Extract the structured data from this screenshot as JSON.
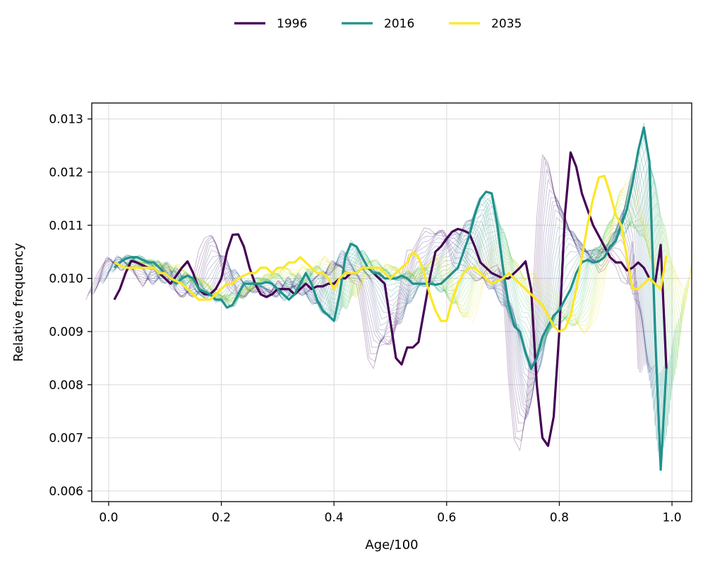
{
  "chart_data": {
    "type": "line",
    "title": "",
    "xlabel": "Age/100",
    "ylabel": "Relative frequency",
    "xlim": [
      -0.03,
      1.035
    ],
    "ylim": [
      0.0058,
      0.0133
    ],
    "grid": true,
    "legend_position": "top-center",
    "x_ticks": [
      0.0,
      0.2,
      0.4,
      0.6,
      0.8,
      1.0
    ],
    "x_tick_labels": [
      "0.0",
      "0.2",
      "0.4",
      "0.6",
      "0.8",
      "1.0"
    ],
    "y_ticks": [
      0.006,
      0.007,
      0.008,
      0.009,
      0.01,
      0.011,
      0.012,
      0.013
    ],
    "y_tick_labels": [
      "0.006",
      "0.007",
      "0.008",
      "0.009",
      "0.010",
      "0.011",
      "0.012",
      "0.013"
    ],
    "series": [
      {
        "name": "1996",
        "color": "#440154",
        "points": [
          [
            0.01,
            0.0096
          ],
          [
            0.02,
            0.0098
          ],
          [
            0.03,
            0.0101
          ],
          [
            0.04,
            0.01033
          ],
          [
            0.05,
            0.0103
          ],
          [
            0.06,
            0.01025
          ],
          [
            0.07,
            0.0102
          ],
          [
            0.08,
            0.0102
          ],
          [
            0.09,
            0.0101
          ],
          [
            0.1,
            0.01
          ],
          [
            0.11,
            0.0099
          ],
          [
            0.12,
            0.01005
          ],
          [
            0.13,
            0.0102
          ],
          [
            0.14,
            0.01032
          ],
          [
            0.15,
            0.0101
          ],
          [
            0.16,
            0.0098
          ],
          [
            0.17,
            0.0097
          ],
          [
            0.18,
            0.0097
          ],
          [
            0.19,
            0.0098
          ],
          [
            0.2,
            0.01
          ],
          [
            0.21,
            0.0105
          ],
          [
            0.22,
            0.01082
          ],
          [
            0.23,
            0.01083
          ],
          [
            0.24,
            0.0106
          ],
          [
            0.25,
            0.0102
          ],
          [
            0.26,
            0.0099
          ],
          [
            0.27,
            0.0097
          ],
          [
            0.28,
            0.00965
          ],
          [
            0.29,
            0.0097
          ],
          [
            0.3,
            0.0098
          ],
          [
            0.31,
            0.0098
          ],
          [
            0.32,
            0.0098
          ],
          [
            0.33,
            0.0097
          ],
          [
            0.34,
            0.0098
          ],
          [
            0.35,
            0.0099
          ],
          [
            0.36,
            0.0098
          ],
          [
            0.37,
            0.00985
          ],
          [
            0.38,
            0.00985
          ],
          [
            0.39,
            0.0099
          ],
          [
            0.4,
            0.0099
          ],
          [
            0.41,
            0.01
          ],
          [
            0.42,
            0.01
          ],
          [
            0.43,
            0.0101
          ],
          [
            0.44,
            0.0101
          ],
          [
            0.45,
            0.0102
          ],
          [
            0.46,
            0.0102
          ],
          [
            0.47,
            0.0101
          ],
          [
            0.48,
            0.01
          ],
          [
            0.49,
            0.0099
          ],
          [
            0.5,
            0.0092
          ],
          [
            0.51,
            0.0085
          ],
          [
            0.52,
            0.00838
          ],
          [
            0.53,
            0.0087
          ],
          [
            0.54,
            0.0087
          ],
          [
            0.55,
            0.0088
          ],
          [
            0.56,
            0.0094
          ],
          [
            0.57,
            0.01
          ],
          [
            0.58,
            0.0105
          ],
          [
            0.59,
            0.0106
          ],
          [
            0.6,
            0.01075
          ],
          [
            0.61,
            0.01088
          ],
          [
            0.62,
            0.01093
          ],
          [
            0.63,
            0.0109
          ],
          [
            0.64,
            0.01085
          ],
          [
            0.65,
            0.0106
          ],
          [
            0.66,
            0.0103
          ],
          [
            0.67,
            0.0102
          ],
          [
            0.68,
            0.0101
          ],
          [
            0.69,
            0.01005
          ],
          [
            0.7,
            0.01
          ],
          [
            0.71,
            0.01
          ],
          [
            0.72,
            0.0101
          ],
          [
            0.73,
            0.0102
          ],
          [
            0.74,
            0.01032
          ],
          [
            0.75,
            0.0098
          ],
          [
            0.76,
            0.008
          ],
          [
            0.77,
            0.007
          ],
          [
            0.78,
            0.00685
          ],
          [
            0.79,
            0.0074
          ],
          [
            0.8,
            0.009
          ],
          [
            0.81,
            0.0112
          ],
          [
            0.82,
            0.01237
          ],
          [
            0.83,
            0.0121
          ],
          [
            0.84,
            0.0116
          ],
          [
            0.85,
            0.0113
          ],
          [
            0.86,
            0.011
          ],
          [
            0.87,
            0.0108
          ],
          [
            0.88,
            0.0106
          ],
          [
            0.89,
            0.0104
          ],
          [
            0.9,
            0.0103
          ],
          [
            0.91,
            0.0103
          ],
          [
            0.92,
            0.01015
          ],
          [
            0.93,
            0.0102
          ],
          [
            0.94,
            0.0103
          ],
          [
            0.95,
            0.0102
          ],
          [
            0.96,
            0.01
          ],
          [
            0.97,
            0.0099
          ],
          [
            0.98,
            0.01063
          ],
          [
            0.99,
            0.0083
          ]
        ]
      },
      {
        "name": "2016",
        "color": "#21918c",
        "points": [
          [
            0.01,
            0.0102
          ],
          [
            0.02,
            0.0103
          ],
          [
            0.03,
            0.01037
          ],
          [
            0.04,
            0.0104
          ],
          [
            0.05,
            0.0104
          ],
          [
            0.06,
            0.01035
          ],
          [
            0.07,
            0.0103
          ],
          [
            0.08,
            0.0103
          ],
          [
            0.09,
            0.0102
          ],
          [
            0.1,
            0.0101
          ],
          [
            0.11,
            0.01
          ],
          [
            0.12,
            0.0099
          ],
          [
            0.13,
            0.01
          ],
          [
            0.14,
            0.01005
          ],
          [
            0.15,
            0.01
          ],
          [
            0.16,
            0.0098
          ],
          [
            0.17,
            0.00975
          ],
          [
            0.18,
            0.0097
          ],
          [
            0.19,
            0.0096
          ],
          [
            0.2,
            0.0096
          ],
          [
            0.21,
            0.00945
          ],
          [
            0.22,
            0.0095
          ],
          [
            0.23,
            0.0097
          ],
          [
            0.24,
            0.0099
          ],
          [
            0.25,
            0.0099
          ],
          [
            0.26,
            0.0099
          ],
          [
            0.27,
            0.0099
          ],
          [
            0.28,
            0.00993
          ],
          [
            0.29,
            0.0099
          ],
          [
            0.3,
            0.0098
          ],
          [
            0.31,
            0.0097
          ],
          [
            0.32,
            0.0096
          ],
          [
            0.33,
            0.0097
          ],
          [
            0.34,
            0.0099
          ],
          [
            0.35,
            0.0101
          ],
          [
            0.36,
            0.0099
          ],
          [
            0.37,
            0.0096
          ],
          [
            0.38,
            0.0094
          ],
          [
            0.39,
            0.0093
          ],
          [
            0.4,
            0.0092
          ],
          [
            0.41,
            0.0097
          ],
          [
            0.42,
            0.0104
          ],
          [
            0.43,
            0.01065
          ],
          [
            0.44,
            0.0106
          ],
          [
            0.45,
            0.0104
          ],
          [
            0.46,
            0.0102
          ],
          [
            0.47,
            0.0101
          ],
          [
            0.48,
            0.0101
          ],
          [
            0.49,
            0.01
          ],
          [
            0.5,
            0.01
          ],
          [
            0.51,
            0.01
          ],
          [
            0.52,
            0.01005
          ],
          [
            0.53,
            0.01
          ],
          [
            0.54,
            0.0099
          ],
          [
            0.55,
            0.0099
          ],
          [
            0.56,
            0.0099
          ],
          [
            0.57,
            0.0099
          ],
          [
            0.58,
            0.00988
          ],
          [
            0.59,
            0.0099
          ],
          [
            0.6,
            0.01
          ],
          [
            0.61,
            0.0101
          ],
          [
            0.62,
            0.0102
          ],
          [
            0.63,
            0.0105
          ],
          [
            0.64,
            0.0108
          ],
          [
            0.65,
            0.0112
          ],
          [
            0.66,
            0.0115
          ],
          [
            0.67,
            0.01163
          ],
          [
            0.68,
            0.0116
          ],
          [
            0.69,
            0.011
          ],
          [
            0.7,
            0.0102
          ],
          [
            0.71,
            0.0095
          ],
          [
            0.72,
            0.0091
          ],
          [
            0.73,
            0.009
          ],
          [
            0.74,
            0.0086
          ],
          [
            0.75,
            0.0083
          ],
          [
            0.76,
            0.0085
          ],
          [
            0.77,
            0.0089
          ],
          [
            0.78,
            0.0091
          ],
          [
            0.79,
            0.0093
          ],
          [
            0.8,
            0.0094
          ],
          [
            0.81,
            0.0096
          ],
          [
            0.82,
            0.0098
          ],
          [
            0.83,
            0.0101
          ],
          [
            0.84,
            0.0103
          ],
          [
            0.85,
            0.01035
          ],
          [
            0.86,
            0.0103
          ],
          [
            0.87,
            0.01032
          ],
          [
            0.88,
            0.0104
          ],
          [
            0.89,
            0.0106
          ],
          [
            0.9,
            0.0107
          ],
          [
            0.91,
            0.011
          ],
          [
            0.92,
            0.0113
          ],
          [
            0.93,
            0.0118
          ],
          [
            0.94,
            0.0124
          ],
          [
            0.95,
            0.01284
          ],
          [
            0.96,
            0.0122
          ],
          [
            0.97,
            0.009
          ],
          [
            0.98,
            0.0064
          ],
          [
            0.99,
            0.0083
          ]
        ]
      },
      {
        "name": "2035",
        "color": "#fde725",
        "points": [
          [
            0.01,
            0.0103
          ],
          [
            0.02,
            0.01025
          ],
          [
            0.03,
            0.0102
          ],
          [
            0.04,
            0.0102
          ],
          [
            0.05,
            0.0102
          ],
          [
            0.06,
            0.0102
          ],
          [
            0.07,
            0.0102
          ],
          [
            0.08,
            0.0102
          ],
          [
            0.09,
            0.0101
          ],
          [
            0.1,
            0.0101
          ],
          [
            0.11,
            0.01
          ],
          [
            0.12,
            0.00995
          ],
          [
            0.13,
            0.0099
          ],
          [
            0.14,
            0.0098
          ],
          [
            0.15,
            0.0097
          ],
          [
            0.16,
            0.0096
          ],
          [
            0.17,
            0.0096
          ],
          [
            0.18,
            0.0096
          ],
          [
            0.19,
            0.0097
          ],
          [
            0.2,
            0.0098
          ],
          [
            0.21,
            0.0099
          ],
          [
            0.22,
            0.0099
          ],
          [
            0.23,
            0.01
          ],
          [
            0.24,
            0.01005
          ],
          [
            0.25,
            0.0101
          ],
          [
            0.26,
            0.0101
          ],
          [
            0.27,
            0.0102
          ],
          [
            0.28,
            0.0102
          ],
          [
            0.29,
            0.0101
          ],
          [
            0.3,
            0.0102
          ],
          [
            0.31,
            0.0102
          ],
          [
            0.32,
            0.0103
          ],
          [
            0.33,
            0.0103
          ],
          [
            0.34,
            0.0104
          ],
          [
            0.35,
            0.0103
          ],
          [
            0.36,
            0.0102
          ],
          [
            0.37,
            0.0101
          ],
          [
            0.38,
            0.0101
          ],
          [
            0.39,
            0.01
          ],
          [
            0.4,
            0.0098
          ],
          [
            0.41,
            0.01
          ],
          [
            0.42,
            0.0101
          ],
          [
            0.43,
            0.0101
          ],
          [
            0.44,
            0.0101
          ],
          [
            0.45,
            0.0102
          ],
          [
            0.46,
            0.0102
          ],
          [
            0.47,
            0.0102
          ],
          [
            0.48,
            0.0102
          ],
          [
            0.49,
            0.0101
          ],
          [
            0.5,
            0.01
          ],
          [
            0.51,
            0.0101
          ],
          [
            0.52,
            0.0102
          ],
          [
            0.53,
            0.0103
          ],
          [
            0.54,
            0.0105
          ],
          [
            0.55,
            0.0104
          ],
          [
            0.56,
            0.0101
          ],
          [
            0.57,
            0.0097
          ],
          [
            0.58,
            0.0094
          ],
          [
            0.59,
            0.0092
          ],
          [
            0.6,
            0.0092
          ],
          [
            0.61,
            0.0096
          ],
          [
            0.62,
            0.0099
          ],
          [
            0.63,
            0.0101
          ],
          [
            0.64,
            0.0102
          ],
          [
            0.65,
            0.0102
          ],
          [
            0.66,
            0.0101
          ],
          [
            0.67,
            0.01
          ],
          [
            0.68,
            0.0099
          ],
          [
            0.69,
            0.00995
          ],
          [
            0.7,
            0.01
          ],
          [
            0.71,
            0.0101
          ],
          [
            0.72,
            0.01
          ],
          [
            0.73,
            0.0099
          ],
          [
            0.74,
            0.0098
          ],
          [
            0.75,
            0.0097
          ],
          [
            0.76,
            0.0096
          ],
          [
            0.77,
            0.0095
          ],
          [
            0.78,
            0.0093
          ],
          [
            0.79,
            0.0091
          ],
          [
            0.8,
            0.009
          ],
          [
            0.81,
            0.00905
          ],
          [
            0.82,
            0.0093
          ],
          [
            0.83,
            0.0098
          ],
          [
            0.84,
            0.0104
          ],
          [
            0.85,
            0.011
          ],
          [
            0.86,
            0.0115
          ],
          [
            0.87,
            0.0119
          ],
          [
            0.88,
            0.01193
          ],
          [
            0.89,
            0.0116
          ],
          [
            0.9,
            0.0112
          ],
          [
            0.91,
            0.011
          ],
          [
            0.92,
            0.0104
          ],
          [
            0.93,
            0.0098
          ],
          [
            0.94,
            0.0098
          ],
          [
            0.95,
            0.0099
          ],
          [
            0.96,
            0.01
          ],
          [
            0.97,
            0.0099
          ],
          [
            0.98,
            0.0098
          ],
          [
            0.99,
            0.01043
          ]
        ]
      }
    ],
    "background_years": {
      "count": 40,
      "start_year": 1996,
      "end_year": 2035,
      "note": "faint intermediate-year curves (viridis, low opacity) interpolating between highlighted series"
    }
  }
}
